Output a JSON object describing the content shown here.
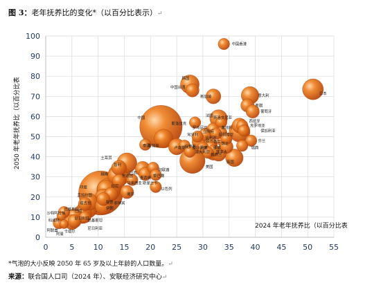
{
  "figure": {
    "title_label": "图 3：",
    "title_text": "老年抚养比的变化*（以百分比表示）",
    "para_mark": "↵",
    "footnote": "*气泡的大小反映 2050 年 65 岁及以上年龄的人口数量。",
    "source_label": "来源：",
    "source_text": "联合国人口司（2024 年）、安联经济研究中心"
  },
  "chart_data": {
    "type": "scatter",
    "subtype": "bubble",
    "title": "",
    "xlabel": "2024 年老年抚养比（以百分比表",
    "ylabel": "2050 年老年抚养比（以百分比表",
    "xlim": [
      0,
      55
    ],
    "ylim": [
      0,
      100
    ],
    "xticks": [
      0,
      5,
      10,
      15,
      20,
      25,
      30,
      35,
      40,
      45,
      50,
      55
    ],
    "yticks": [
      0,
      10,
      20,
      30,
      40,
      50,
      60,
      70,
      80,
      90,
      100
    ],
    "grid": true,
    "bubble_color": "#e87722",
    "points": [
      {
        "label": "中国香港",
        "x": 34.0,
        "y": 96.0,
        "size": 2
      },
      {
        "label": "日本",
        "x": 51.0,
        "y": 73.5,
        "size": 9
      },
      {
        "label": "意大利",
        "x": 39.0,
        "y": 70.5,
        "size": 6
      },
      {
        "label": "希腊",
        "x": 38.5,
        "y": 65.5,
        "size": 3
      },
      {
        "label": "葡萄牙",
        "x": 39.5,
        "y": 62.5,
        "size": 3
      },
      {
        "label": "西班牙",
        "x": 37.0,
        "y": 55.5,
        "size": 4
      },
      {
        "label": "克罗地亚",
        "x": 37.5,
        "y": 55.5,
        "size": 2
      },
      {
        "label": "保加利亚",
        "x": 37.8,
        "y": 53.0,
        "size": 2
      },
      {
        "label": "德国",
        "x": 37.0,
        "y": 52.5,
        "size": 9
      },
      {
        "label": "芬兰",
        "x": 39.2,
        "y": 48.0,
        "size": 2
      },
      {
        "label": "瑞典",
        "x": 37.5,
        "y": 45.5,
        "size": 2
      },
      {
        "label": "韩国",
        "x": 27.5,
        "y": 76.0,
        "size": 7
      },
      {
        "label": "中国台湾",
        "x": 28.0,
        "y": 73.0,
        "size": 3
      },
      {
        "label": "新加坡",
        "x": 32.0,
        "y": 70.0,
        "size": 4
      },
      {
        "label": "中国",
        "x": 22.0,
        "y": 55.0,
        "size": 44
      },
      {
        "label": "法国",
        "x": 33.0,
        "y": 59.0,
        "size": 6
      },
      {
        "label": "斯洛伐克",
        "x": 28.5,
        "y": 57.0,
        "size": 2
      },
      {
        "label": "斯洛文尼亚",
        "x": 33.5,
        "y": 57.0,
        "size": 2
      },
      {
        "label": "奥地利",
        "x": 32.0,
        "y": 53.5,
        "size": 3
      },
      {
        "label": "拉脱维亚",
        "x": 33.5,
        "y": 52.0,
        "size": 2
      },
      {
        "label": "捷克",
        "x": 32.5,
        "y": 51.5,
        "size": 2
      },
      {
        "label": "罗马尼亚",
        "x": 30.5,
        "y": 51.0,
        "size": 3
      },
      {
        "label": "匈牙利",
        "x": 29.0,
        "y": 50.0,
        "size": 2
      },
      {
        "label": "立陶宛",
        "x": 34.5,
        "y": 49.0,
        "size": 2
      },
      {
        "label": "比利时",
        "x": 34.0,
        "y": 48.0,
        "size": 3
      },
      {
        "label": "波兰",
        "x": 29.5,
        "y": 47.5,
        "size": 5
      },
      {
        "label": "瑞士",
        "x": 31.5,
        "y": 46.0,
        "size": 3
      },
      {
        "label": "荷兰",
        "x": 34.5,
        "y": 45.0,
        "size": 3
      },
      {
        "label": "爱沙尼亚",
        "x": 31.5,
        "y": 45.0,
        "size": 2
      },
      {
        "label": "卢森堡",
        "x": 26.5,
        "y": 45.5,
        "size": 2
      },
      {
        "label": "丹麦",
        "x": 30.0,
        "y": 44.5,
        "size": 2
      },
      {
        "label": "挪威",
        "x": 32.0,
        "y": 43.0,
        "size": 2
      },
      {
        "label": "澳大利亚",
        "x": 32.0,
        "y": 42.0,
        "size": 4
      },
      {
        "label": "新西兰",
        "x": 31.0,
        "y": 42.0,
        "size": 2
      },
      {
        "label": "英国",
        "x": 36.0,
        "y": 39.5,
        "size": 6
      },
      {
        "label": "美国",
        "x": 28.0,
        "y": 38.0,
        "size": 14
      },
      {
        "label": "加拿大",
        "x": 33.0,
        "y": 41.5,
        "size": 4
      },
      {
        "label": "爱尔兰",
        "x": 27.5,
        "y": 42.5,
        "size": 2
      },
      {
        "label": "泰国",
        "x": 22.5,
        "y": 49.0,
        "size": 7
      },
      {
        "label": "俄罗斯",
        "x": 25.0,
        "y": 45.0,
        "size": 5
      },
      {
        "label": "新加坡",
        "x": 19.0,
        "y": 46.0,
        "size": 2
      },
      {
        "label": "土耳其",
        "x": 15.5,
        "y": 37.0,
        "size": 8
      },
      {
        "label": "智利",
        "x": 14.0,
        "y": 34.5,
        "size": 4
      },
      {
        "label": "巴西",
        "x": 14.0,
        "y": 31.0,
        "size": 10
      },
      {
        "label": "越南",
        "x": 13.5,
        "y": 30.5,
        "size": 6
      },
      {
        "label": "阿联酋",
        "x": 20.5,
        "y": 34.5,
        "size": 2
      },
      {
        "label": "墨西哥",
        "x": 18.5,
        "y": 34.0,
        "size": 4
      },
      {
        "label": "阿根廷",
        "x": 19.0,
        "y": 31.5,
        "size": 3
      },
      {
        "label": "乌拉圭",
        "x": 21.0,
        "y": 31.0,
        "size": 2
      },
      {
        "label": "斯里兰卡",
        "x": 16.5,
        "y": 28.5,
        "size": 2
      },
      {
        "label": "马来西亚",
        "x": 14.0,
        "y": 28.0,
        "size": 3
      },
      {
        "label": "以色列",
        "x": 21.0,
        "y": 25.0,
        "size": 2
      },
      {
        "label": "印度",
        "x": 10.5,
        "y": 22.0,
        "size": 48
      },
      {
        "label": "印尼",
        "x": 12.0,
        "y": 23.5,
        "size": 12
      },
      {
        "label": "孟加拉国",
        "x": 11.5,
        "y": 24.0,
        "size": 6
      },
      {
        "label": "菲律宾",
        "x": 11.0,
        "y": 20.0,
        "size": 5
      },
      {
        "label": "南非",
        "x": 12.5,
        "y": 21.5,
        "size": 3
      },
      {
        "label": "墨西哥",
        "x": 15.5,
        "y": 22.5,
        "size": 3
      },
      {
        "label": "秘鲁",
        "x": 11.0,
        "y": 19.0,
        "size": 3
      },
      {
        "label": "埃及",
        "x": 8.5,
        "y": 17.5,
        "size": 5
      },
      {
        "label": "沙特",
        "x": 7.5,
        "y": 16.5,
        "size": 3
      },
      {
        "label": "伊朗",
        "x": 11.0,
        "y": 15.5,
        "size": 5
      },
      {
        "label": "巴基斯坦",
        "x": 8.0,
        "y": 14.5,
        "size": 8
      },
      {
        "label": "尼日利亚",
        "x": 7.0,
        "y": 11.5,
        "size": 7
      },
      {
        "label": "埃塞俄比亚",
        "x": 5.5,
        "y": 10.5,
        "size": 4
      },
      {
        "label": "沙特阿拉伯",
        "x": 3.5,
        "y": 12.5,
        "size": 2
      },
      {
        "label": "科威特",
        "x": 3.0,
        "y": 10.5,
        "size": 1
      },
      {
        "label": "肯尼亚",
        "x": 5.5,
        "y": 8.0,
        "size": 3
      },
      {
        "label": "阿曼",
        "x": 7.5,
        "y": 10.0,
        "size": 2
      },
      {
        "label": "刚果民主共和国",
        "x": 5.0,
        "y": 7.5,
        "size": 4
      },
      {
        "label": "卡塔尔",
        "x": 3.5,
        "y": 6.5,
        "size": 1
      },
      {
        "label": "阿联酋",
        "x": 2.5,
        "y": 7.0,
        "size": 2
      }
    ],
    "visible_labels": [
      {
        "text": "中国香港",
        "x": 35.5,
        "y": 96.0
      },
      {
        "text": "日本",
        "x": 52.2,
        "y": 71.5
      },
      {
        "text": "意大利",
        "x": 40.5,
        "y": 70.5
      },
      {
        "text": "希腊",
        "x": 40.0,
        "y": 65.5
      },
      {
        "text": "葡萄牙",
        "x": 41.0,
        "y": 62.5
      },
      {
        "text": "西班牙",
        "x": 38.8,
        "y": 57.8
      },
      {
        "text": "克罗地亚",
        "x": 39.0,
        "y": 55.5
      },
      {
        "text": "保加利亚",
        "x": 41.0,
        "y": 53.0
      },
      {
        "text": "芬兰",
        "x": 40.5,
        "y": 48.0
      },
      {
        "text": "瑞典",
        "x": 39.2,
        "y": 44.5
      },
      {
        "text": "韩国",
        "x": 26.0,
        "y": 79.0
      },
      {
        "text": "中国台湾",
        "x": 23.8,
        "y": 74.5
      },
      {
        "text": "新加坡",
        "x": 29.5,
        "y": 70.0
      },
      {
        "text": "中国",
        "x": 17.5,
        "y": 59.5
      },
      {
        "text": "斯洛伐克",
        "x": 24.0,
        "y": 56.5
      },
      {
        "text": "斯洛文尼亚",
        "x": 32.0,
        "y": 59.5
      },
      {
        "text": "法国",
        "x": 30.5,
        "y": 60.5
      },
      {
        "text": "奥地利",
        "x": 33.5,
        "y": 54.5
      },
      {
        "text": "罗马尼亚",
        "x": 28.0,
        "y": 54.5
      },
      {
        "text": "匈牙利",
        "x": 27.0,
        "y": 51.0
      },
      {
        "text": "立陶宛",
        "x": 30.0,
        "y": 52.5
      },
      {
        "text": "拉脱维亚",
        "x": 33.0,
        "y": 51.0
      },
      {
        "text": "比利时",
        "x": 30.5,
        "y": 49.5
      },
      {
        "text": "波兰",
        "x": 30.5,
        "y": 48.0
      },
      {
        "text": "瑞士",
        "x": 33.5,
        "y": 46.5
      },
      {
        "text": "荷兰",
        "x": 32.0,
        "y": 47.5
      },
      {
        "text": "爱沙尼亚",
        "x": 28.0,
        "y": 44.5
      },
      {
        "text": "卢森堡",
        "x": 24.5,
        "y": 44.5
      },
      {
        "text": "丹麦",
        "x": 29.5,
        "y": 44.5
      },
      {
        "text": "挪威",
        "x": 32.0,
        "y": 44.5
      },
      {
        "text": "澳大利亚",
        "x": 28.5,
        "y": 42.5
      },
      {
        "text": "加拿大",
        "x": 32.5,
        "y": 42.5
      },
      {
        "text": "新西兰",
        "x": 31.5,
        "y": 41.0
      },
      {
        "text": "英国",
        "x": 34.5,
        "y": 37.5
      },
      {
        "text": "美国",
        "x": 30.5,
        "y": 35.0
      },
      {
        "text": "泰国",
        "x": 18.5,
        "y": 45.5
      },
      {
        "text": "俄罗斯",
        "x": 26.5,
        "y": 45.0
      },
      {
        "text": "新加坡",
        "x": 19.5,
        "y": 45.5
      },
      {
        "text": "土耳其",
        "x": 10.5,
        "y": 39.5
      },
      {
        "text": "智利",
        "x": 13.0,
        "y": 36.0
      },
      {
        "text": "越南",
        "x": 10.5,
        "y": 31.5
      },
      {
        "text": "巴西",
        "x": 16.0,
        "y": 32.0
      },
      {
        "text": "东道国",
        "x": 14.5,
        "y": 30.5
      },
      {
        "text": "阿联酋",
        "x": 21.5,
        "y": 33.5
      },
      {
        "text": "黎巴嫩",
        "x": 20.5,
        "y": 30.5
      },
      {
        "text": "墨西哥",
        "x": 18.0,
        "y": 29.5
      },
      {
        "text": "马来西亚",
        "x": 15.5,
        "y": 27.0
      },
      {
        "text": "斯里兰卡",
        "x": 18.5,
        "y": 27.0
      },
      {
        "text": "以色列",
        "x": 22.0,
        "y": 24.0
      },
      {
        "text": "印度",
        "x": 6.5,
        "y": 25.0
      },
      {
        "text": "孟加拉国",
        "x": 6.0,
        "y": 21.0
      },
      {
        "text": "印尼",
        "x": 12.5,
        "y": 25.5
      },
      {
        "text": "南非",
        "x": 15.5,
        "y": 21.5
      },
      {
        "text": "菲律宾",
        "x": 13.0,
        "y": 17.0
      },
      {
        "text": "秘鲁",
        "x": 11.5,
        "y": 17.5
      },
      {
        "text": "塔吉克",
        "x": 6.5,
        "y": 17.0
      },
      {
        "text": "伊朗",
        "x": 11.5,
        "y": 14.5
      },
      {
        "text": "巴基斯坦",
        "x": 3.5,
        "y": 14.0
      },
      {
        "text": "沙特阿拉伯",
        "x": 0.2,
        "y": 12.0
      },
      {
        "text": "巴西",
        "x": 5.5,
        "y": 13.0
      },
      {
        "text": "尼日利亚",
        "x": 5.5,
        "y": 9.5
      },
      {
        "text": "科威特",
        "x": 0.5,
        "y": 8.5
      },
      {
        "text": "巴基斯坦",
        "x": 8.0,
        "y": 8.5
      },
      {
        "text": "尼日利亚",
        "x": 8.0,
        "y": 4.5
      },
      {
        "text": "阿联酋",
        "x": 0.2,
        "y": 3.5
      },
      {
        "text": "卡塔尔",
        "x": 3.5,
        "y": 3.0
      },
      {
        "text": "阿曼",
        "x": 2.0,
        "y": 1.8
      }
    ]
  }
}
